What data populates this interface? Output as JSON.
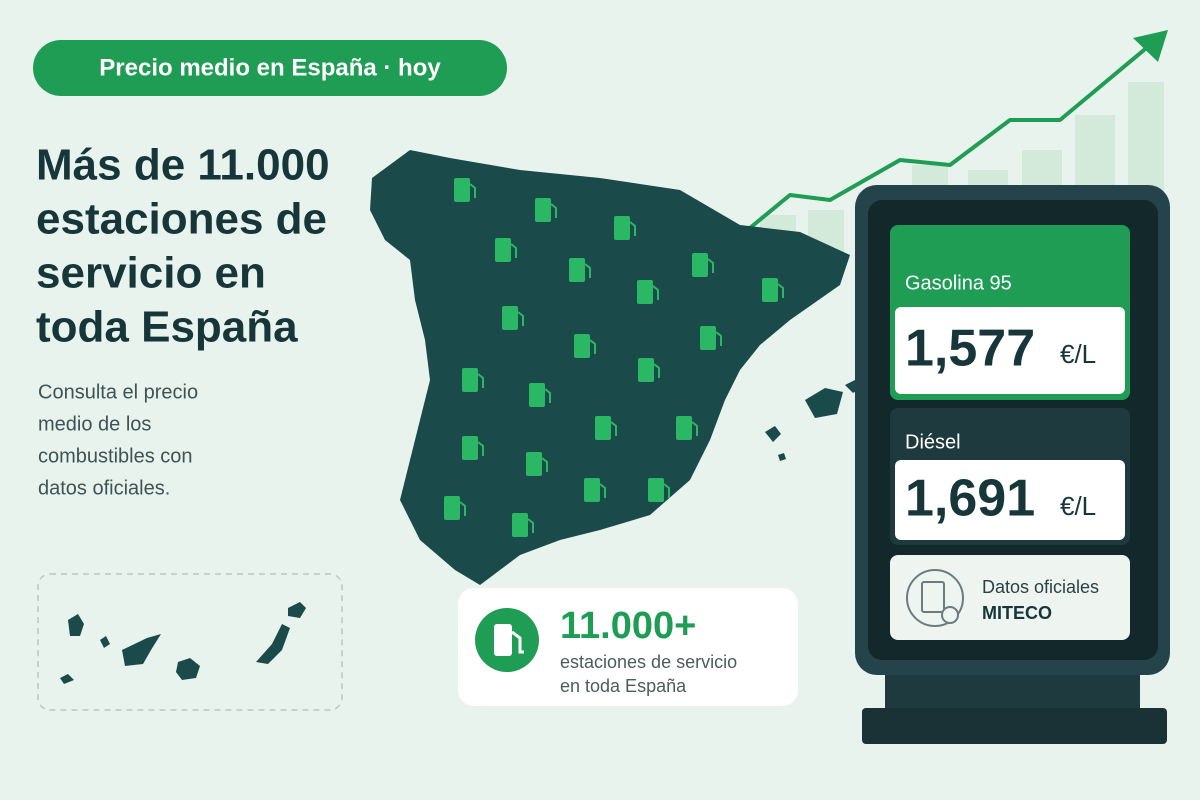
{
  "header": {
    "badge": "Precio medio en España · hoy"
  },
  "headline": {
    "lines": [
      "Más de 11.000",
      "estaciones de",
      "servicio en",
      "toda España"
    ]
  },
  "description": {
    "lines": [
      "Consulta el precio",
      "medio de los",
      "combustibles con",
      "datos oficiales."
    ]
  },
  "stat_card": {
    "number": "11.000+",
    "caption_lines": [
      "estaciones de servicio",
      "en toda España"
    ]
  },
  "price_sign": {
    "fuels": [
      {
        "label": "Gasolina 95",
        "price": "1,577",
        "unit": "€/L"
      },
      {
        "label": "Diésel",
        "price": "1,691",
        "unit": "€/L"
      }
    ],
    "source": {
      "line1": "Datos oficiales",
      "line2": "MITECO"
    }
  }
}
